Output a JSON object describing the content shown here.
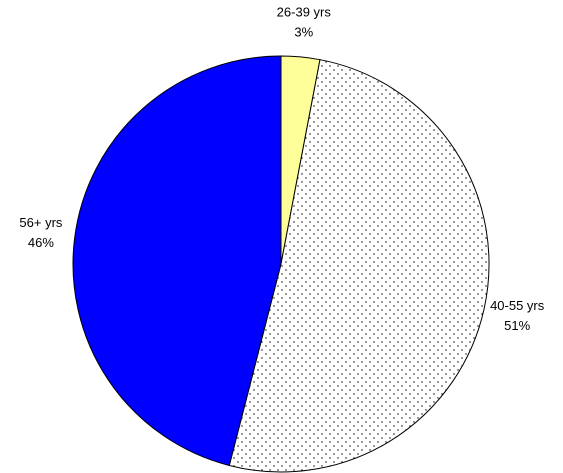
{
  "chart_data": {
    "type": "pie",
    "categories": [
      "26-39 yrs",
      "40-55 yrs",
      "56+ yrs"
    ],
    "values": [
      3,
      51,
      46
    ],
    "value_labels": [
      "3%",
      "51%",
      "46%"
    ],
    "colors": [
      "#ffff99",
      "#ffffff",
      "#0000ff"
    ],
    "patterns": [
      null,
      "dots",
      null
    ]
  }
}
